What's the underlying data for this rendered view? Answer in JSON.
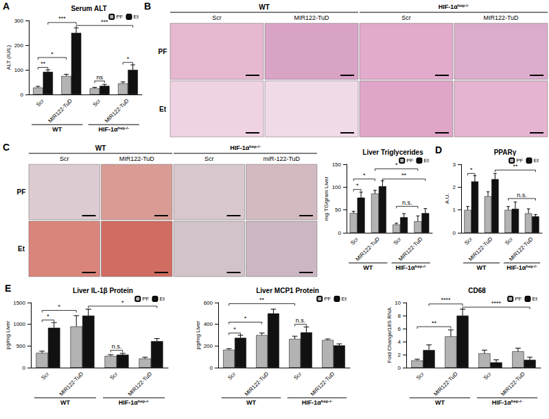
{
  "images": [
    {
      "panel": "B",
      "groups": [
        {
          "label": "WT",
          "columns": [
            0,
            1
          ]
        },
        {
          "label": "HIF-1α",
          "sup": "hep-/-",
          "columns": [
            2,
            3
          ]
        }
      ],
      "columns": [
        "Scr",
        "MIR122-TuD",
        "Scr",
        "MIR122-TuD"
      ],
      "rows": [
        "PF",
        "Et"
      ]
    },
    {
      "panel": "C",
      "groups": [
        {
          "label": "WT",
          "columns": [
            0,
            1
          ]
        },
        {
          "label": "HIF-1α",
          "sup": "hep-/-",
          "columns": [
            2,
            3
          ]
        }
      ],
      "columns": [
        "Scr",
        "MIR122-TuD",
        "Scr",
        "miR-122-TuD"
      ],
      "rows": [
        "PF",
        "Et"
      ]
    }
  ],
  "chart_data": [
    {
      "panel": "A",
      "type": "bar",
      "title": "Serum ALT",
      "y_label": "ALT (IU/L)",
      "categories": [
        "Scr",
        "MIR122-TuD",
        "Scr",
        "MIR122-TuD"
      ],
      "groups": [
        {
          "label": "WT",
          "categories": [
            0,
            1
          ]
        },
        {
          "label": "HIF-1α",
          "sup": "hep-/-",
          "categories": [
            2,
            3
          ]
        }
      ],
      "series": [
        {
          "name": "PF",
          "color": "#b3b3b3",
          "values": [
            28,
            75,
            25,
            45
          ],
          "errors": [
            5,
            7,
            4,
            6
          ]
        },
        {
          "name": "Et",
          "color": "#111111",
          "values": [
            92,
            250,
            35,
            100
          ],
          "errors": [
            8,
            20,
            6,
            20
          ]
        }
      ],
      "ylim": [
        0,
        300
      ],
      "yticks": [
        0,
        100,
        200,
        300
      ],
      "grid": false,
      "legend": "upper right",
      "annotations": [
        {
          "from": [
            0,
            0
          ],
          "to": [
            0,
            1
          ],
          "y": 110,
          "text": "**"
        },
        {
          "from": [
            0,
            0
          ],
          "to": [
            1,
            0
          ],
          "y": 150,
          "text": "*"
        },
        {
          "from": [
            0,
            1
          ],
          "to": [
            1,
            1
          ],
          "y": 292,
          "text": "***"
        },
        {
          "from": [
            1,
            1
          ],
          "to": [
            3,
            1
          ],
          "y": 280,
          "text": "***"
        },
        {
          "from": [
            2,
            0
          ],
          "to": [
            2,
            1
          ],
          "y": 55,
          "text": "ns"
        },
        {
          "from": [
            3,
            0
          ],
          "to": [
            3,
            1
          ],
          "y": 130,
          "text": "*"
        }
      ]
    },
    {
      "type": "bar",
      "title": "Liver Triglycerides",
      "y_label": "mg TG/gram Liver",
      "categories": [
        "Scr",
        "MIR122-TuD",
        "Scr",
        "MIR122-TuD"
      ],
      "groups": [
        {
          "label": "WT",
          "categories": [
            0,
            1
          ]
        },
        {
          "label": "HIF-1α",
          "sup": "hep-/-",
          "categories": [
            2,
            3
          ]
        }
      ],
      "series": [
        {
          "name": "PF",
          "color": "#b3b3b3",
          "values": [
            43,
            86,
            18,
            25
          ],
          "errors": [
            4,
            7,
            3,
            12
          ]
        },
        {
          "name": "Et",
          "color": "#111111",
          "values": [
            77,
            102,
            34,
            43
          ],
          "errors": [
            12,
            12,
            8,
            10
          ]
        }
      ],
      "ylim": [
        0,
        150
      ],
      "yticks": [
        0,
        50,
        100,
        150
      ],
      "grid": false,
      "legend": "upper right",
      "annotations": [
        {
          "from": [
            0,
            0
          ],
          "to": [
            0,
            1
          ],
          "y": 95,
          "text": "*"
        },
        {
          "from": [
            0,
            0
          ],
          "to": [
            1,
            0
          ],
          "y": 118,
          "text": "*"
        },
        {
          "from": [
            1,
            1
          ],
          "to": [
            3,
            1
          ],
          "y": 118,
          "text": "**"
        },
        {
          "from": [
            1,
            0
          ],
          "to": [
            3,
            0
          ],
          "y": 140,
          "text": "*"
        },
        {
          "from": [
            2,
            0
          ],
          "to": [
            3,
            0
          ],
          "y": 58,
          "text": "n.s."
        }
      ]
    },
    {
      "panel": "D",
      "type": "bar",
      "title": "PPARγ",
      "y_label": "A.U.",
      "categories": [
        "Scr",
        "MIR122-TuD",
        "Scr",
        "MIR122-TuD"
      ],
      "groups": [
        {
          "label": "WT",
          "categories": [
            0,
            1
          ]
        },
        {
          "label": "HIF-1α",
          "sup": "hep-/-",
          "categories": [
            2,
            3
          ]
        }
      ],
      "series": [
        {
          "name": "PF",
          "color": "#b3b3b3",
          "values": [
            1.0,
            1.6,
            1.0,
            0.85
          ],
          "errors": [
            0.15,
            0.2,
            0.15,
            0.2
          ]
        },
        {
          "name": "Et",
          "color": "#111111",
          "values": [
            2.25,
            2.35,
            1.05,
            0.72
          ],
          "errors": [
            0.25,
            0.25,
            0.3,
            0.08
          ]
        }
      ],
      "ylim": [
        0,
        3
      ],
      "yticks": [
        0,
        1,
        2,
        3
      ],
      "grid": false,
      "legend": "upper right",
      "annotations": [
        {
          "from": [
            0,
            0
          ],
          "to": [
            0,
            1
          ],
          "y": 2.6,
          "text": "*"
        },
        {
          "from": [
            1,
            1
          ],
          "to": [
            3,
            1
          ],
          "y": 2.75,
          "text": "**"
        },
        {
          "from": [
            2,
            0
          ],
          "to": [
            3,
            1
          ],
          "y": 1.5,
          "text": "n.s."
        }
      ]
    },
    {
      "panel": "E",
      "type": "bar",
      "title": "Liver IL-1β Protein",
      "y_label": "pg/mg Liver",
      "categories": [
        "Scr",
        "MIR122-TuD",
        "Scr",
        "MIR122-TuD"
      ],
      "groups": [
        {
          "label": "WT",
          "categories": [
            0,
            1
          ]
        },
        {
          "label": "HIF-1α",
          "sup": "hep-/-",
          "categories": [
            2,
            3
          ]
        }
      ],
      "series": [
        {
          "name": "PF",
          "color": "#b3b3b3",
          "values": [
            340,
            950,
            270,
            210
          ],
          "errors": [
            40,
            250,
            30,
            30
          ]
        },
        {
          "name": "Et",
          "color": "#111111",
          "values": [
            920,
            1200,
            300,
            610
          ],
          "errors": [
            120,
            150,
            30,
            60
          ]
        }
      ],
      "ylim": [
        0,
        1500
      ],
      "yticks": [
        0,
        500,
        1000,
        1500
      ],
      "grid": false,
      "legend": "upper right",
      "annotations": [
        {
          "from": [
            0,
            0
          ],
          "to": [
            0,
            1
          ],
          "y": 1100,
          "text": "*"
        },
        {
          "from": [
            0,
            0
          ],
          "to": [
            1,
            0
          ],
          "y": 1320,
          "text": "*"
        },
        {
          "from": [
            1,
            1
          ],
          "to": [
            3,
            1
          ],
          "y": 1420,
          "text": "*"
        },
        {
          "from": [
            2,
            0
          ],
          "to": [
            2,
            1
          ],
          "y": 400,
          "text": "n.s."
        }
      ]
    },
    {
      "type": "bar",
      "title": "Liver MCP1 Protein",
      "y_label": "pg/mg Liver",
      "categories": [
        "Scr",
        "MIR122-TuD",
        "Scr",
        "MIR122-TuD"
      ],
      "groups": [
        {
          "label": "WT",
          "categories": [
            0,
            1
          ]
        },
        {
          "label": "HIF-1α",
          "sup": "hep-/-",
          "categories": [
            2,
            3
          ]
        }
      ],
      "series": [
        {
          "name": "PF",
          "color": "#b3b3b3",
          "values": [
            165,
            300,
            265,
            255
          ],
          "errors": [
            10,
            20,
            25,
            10
          ]
        },
        {
          "name": "Et",
          "color": "#111111",
          "values": [
            275,
            500,
            325,
            205
          ],
          "errors": [
            25,
            40,
            50,
            15
          ]
        }
      ],
      "ylim": [
        0,
        600
      ],
      "yticks": [
        0,
        200,
        400,
        600
      ],
      "grid": false,
      "legend": "upper right",
      "annotations": [
        {
          "from": [
            0,
            0
          ],
          "to": [
            0,
            1
          ],
          "y": 320,
          "text": "*"
        },
        {
          "from": [
            0,
            0
          ],
          "to": [
            1,
            0
          ],
          "y": 420,
          "text": "*"
        },
        {
          "from": [
            0,
            0
          ],
          "to": [
            2,
            0
          ],
          "y": 590,
          "text": "**"
        },
        {
          "from": [
            2,
            0
          ],
          "to": [
            2,
            1
          ],
          "y": 400,
          "text": "n.s."
        }
      ]
    },
    {
      "type": "bar",
      "title": "CD68",
      "y_label": "Fold Change/18S RNA",
      "categories": [
        "Scr",
        "MIR122-TuD",
        "Scr",
        "MIR122-TuD"
      ],
      "groups": [
        {
          "label": "WT",
          "categories": [
            0,
            1
          ]
        },
        {
          "label": "HIF-1α",
          "sup": "hep-/-",
          "categories": [
            2,
            3
          ]
        }
      ],
      "series": [
        {
          "name": "PF",
          "color": "#b3b3b3",
          "values": [
            1.1,
            4.8,
            2.2,
            2.5
          ],
          "errors": [
            0.2,
            1.0,
            0.5,
            0.5
          ]
        },
        {
          "name": "Et",
          "color": "#111111",
          "values": [
            2.7,
            8.0,
            0.8,
            1.2
          ],
          "errors": [
            0.8,
            1.0,
            0.4,
            0.4
          ]
        }
      ],
      "ylim": [
        0,
        10
      ],
      "yticks": [
        0,
        2,
        4,
        6,
        8,
        10
      ],
      "grid": false,
      "legend": "upper right",
      "annotations": [
        {
          "from": [
            0,
            0
          ],
          "to": [
            1,
            0
          ],
          "y": 6.3,
          "text": "**"
        },
        {
          "from": [
            0,
            1
          ],
          "to": [
            1,
            1
          ],
          "y": 9.8,
          "text": "****"
        },
        {
          "from": [
            1,
            1
          ],
          "to": [
            3,
            1
          ],
          "y": 9.3,
          "text": "****"
        }
      ]
    }
  ]
}
